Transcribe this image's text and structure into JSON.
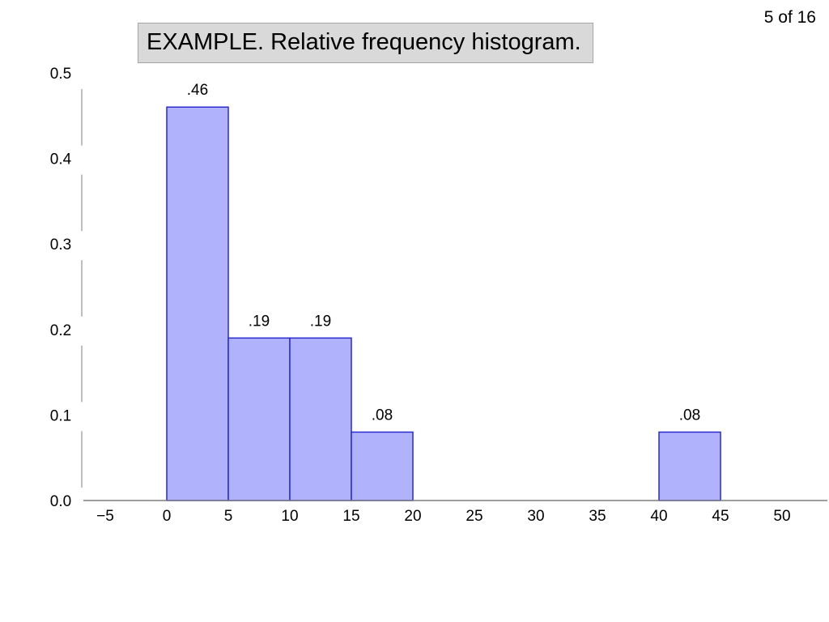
{
  "slide_counter": "5 of 16",
  "title": "EXAMPLE. Relative frequency histogram.",
  "colors": {
    "bar_fill": "#b0b2fc",
    "bar_stroke": "#2a2ad0",
    "axis": "#7f7f7f"
  },
  "chart_data": {
    "type": "bar",
    "title": "EXAMPLE. Relative frequency histogram.",
    "xlabel": "",
    "ylabel": "",
    "xlim": [
      -5,
      50
    ],
    "ylim": [
      0,
      0.5
    ],
    "xticks": [
      -5,
      0,
      5,
      10,
      15,
      20,
      25,
      30,
      35,
      40,
      45,
      50
    ],
    "xtick_labels": [
      "−5",
      "0",
      "5",
      "10",
      "15",
      "20",
      "25",
      "30",
      "35",
      "40",
      "45",
      "50"
    ],
    "yticks": [
      0.0,
      0.1,
      0.2,
      0.3,
      0.4,
      0.5
    ],
    "ytick_labels": [
      "0.0",
      "0.1",
      "0.2",
      "0.3",
      "0.4",
      "0.5"
    ],
    "bins": [
      {
        "start": 0,
        "end": 5,
        "value": 0.46,
        "label": ".46"
      },
      {
        "start": 5,
        "end": 10,
        "value": 0.19,
        "label": ".19"
      },
      {
        "start": 10,
        "end": 15,
        "value": 0.19,
        "label": ".19"
      },
      {
        "start": 15,
        "end": 20,
        "value": 0.08,
        "label": ".08"
      },
      {
        "start": 40,
        "end": 45,
        "value": 0.08,
        "label": ".08"
      }
    ],
    "grid": false,
    "legend": "none"
  }
}
